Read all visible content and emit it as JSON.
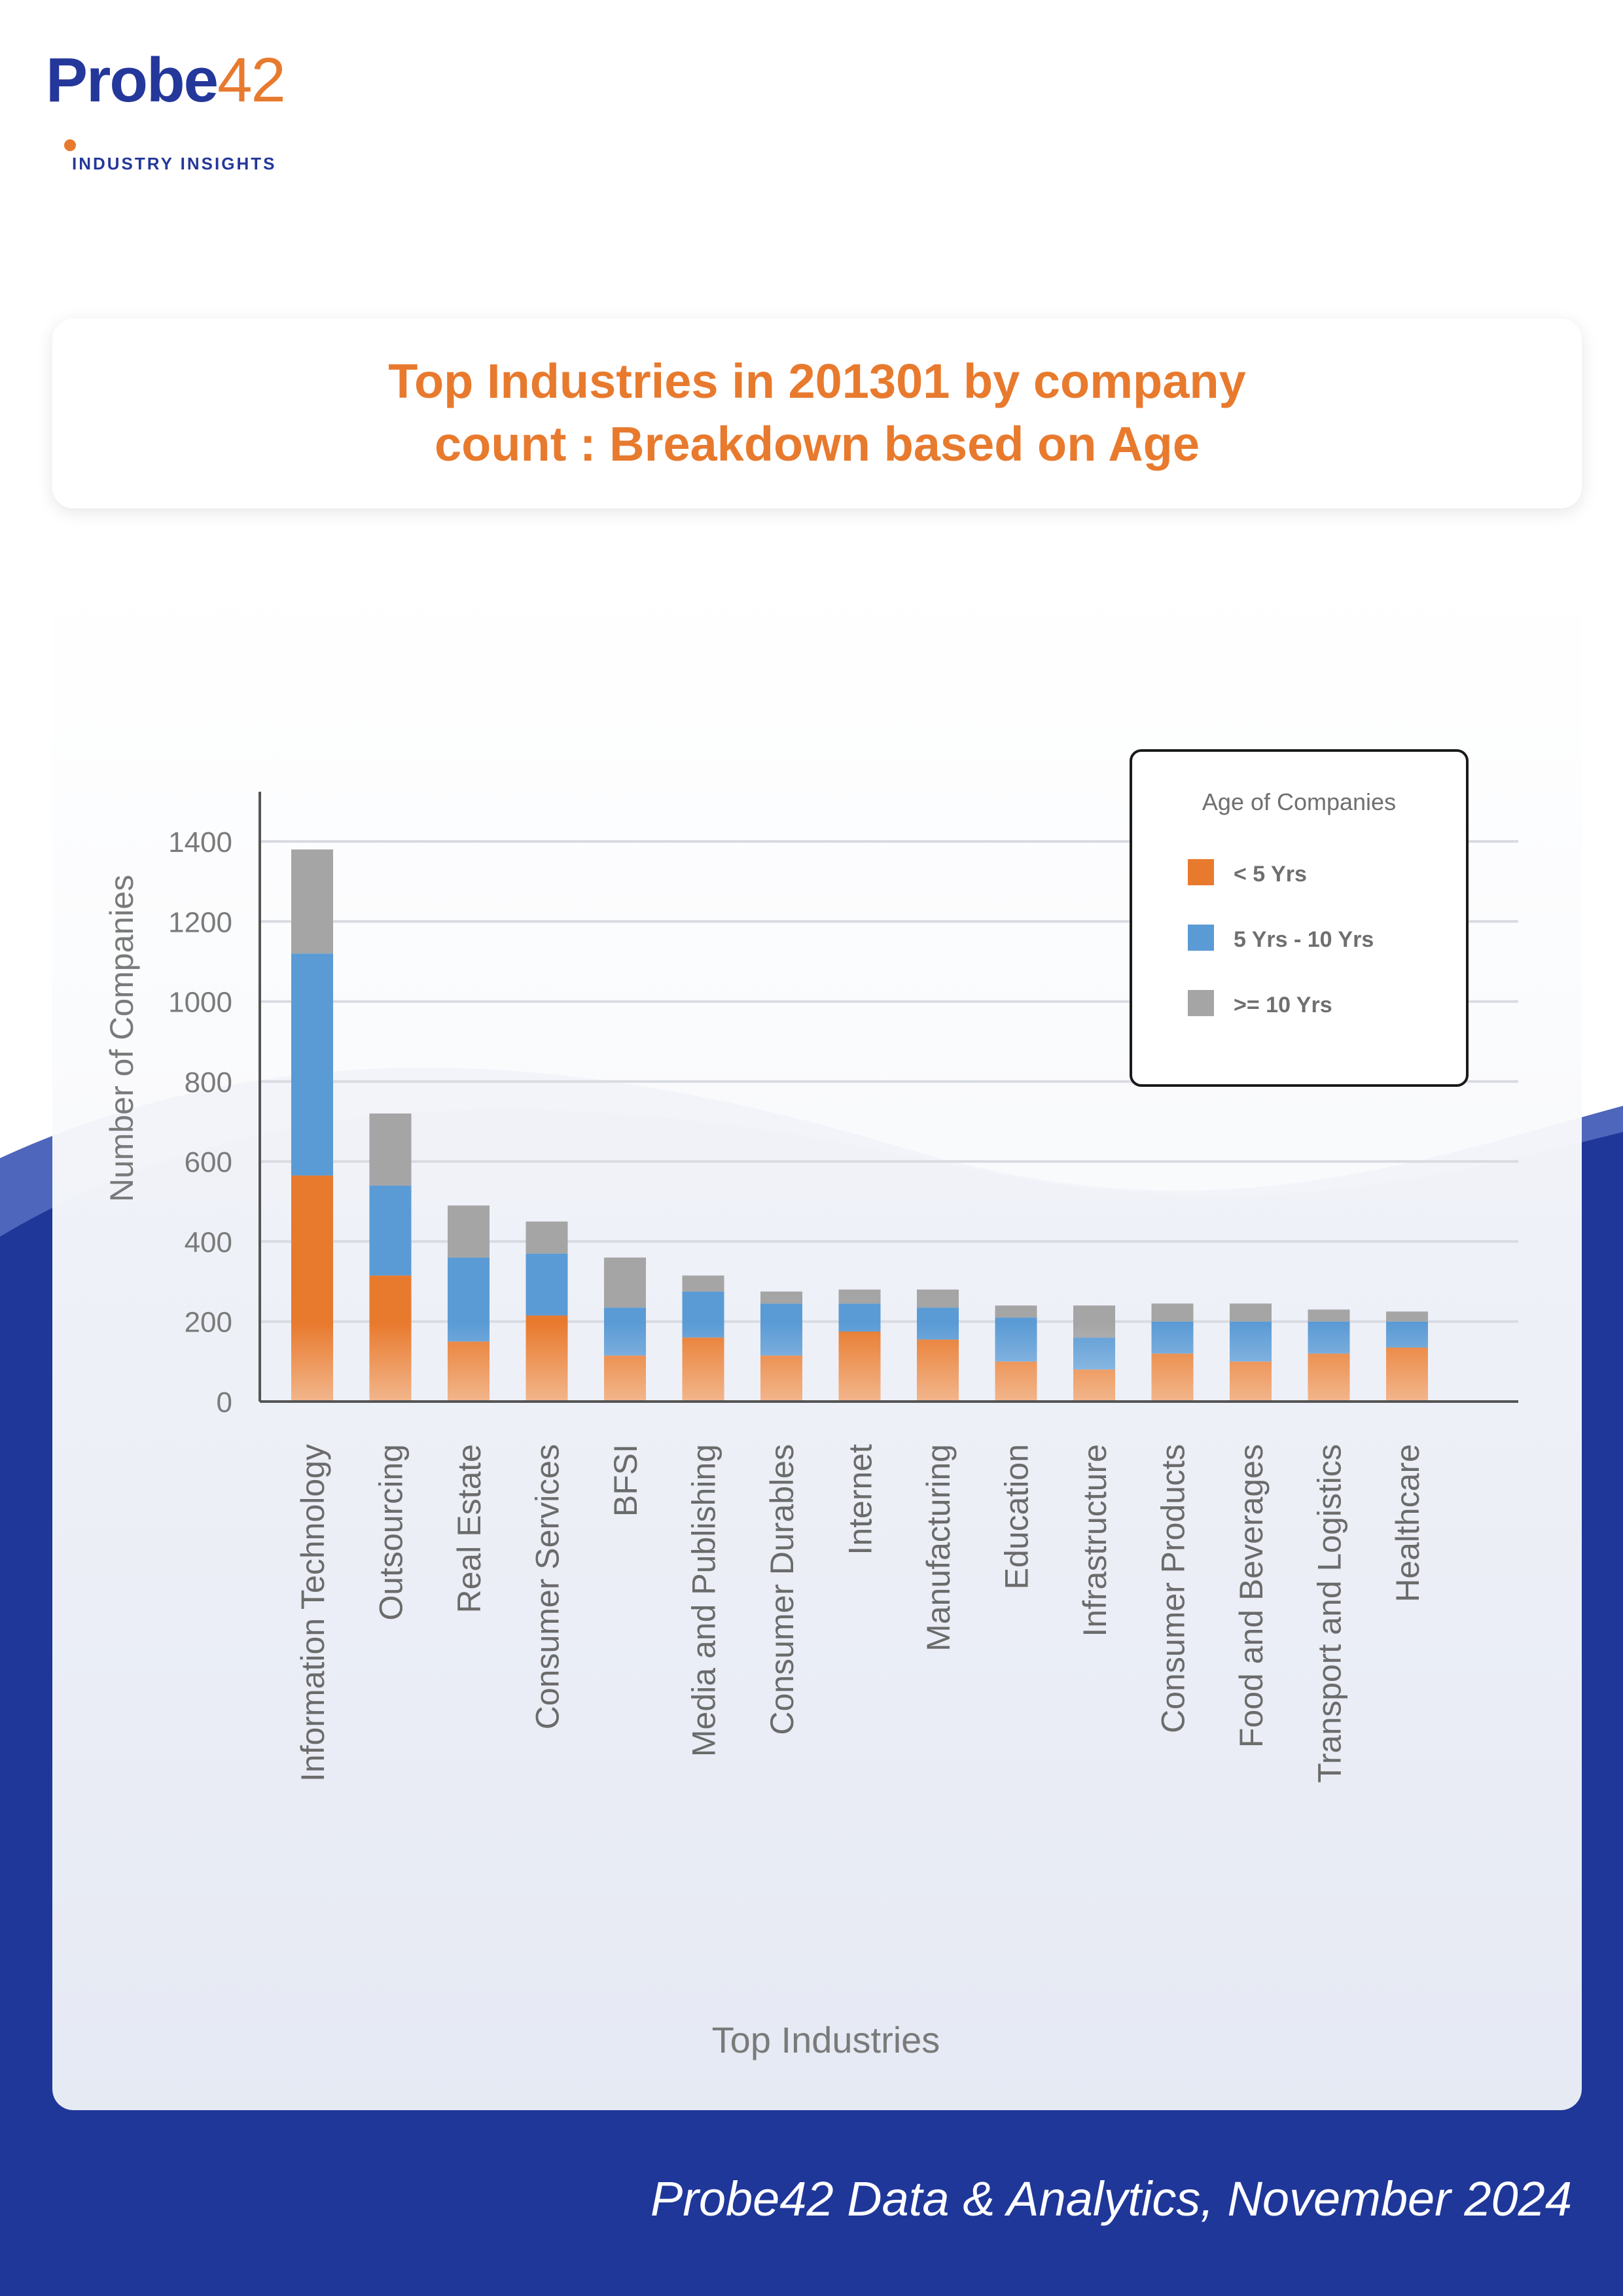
{
  "brand": {
    "logo_text_main": "Probe",
    "logo_text_num": "42",
    "logo_tagline": "INDUSTRY INSIGHTS"
  },
  "header": {
    "title_line1": "Top Industries in 201301 by company",
    "title_line2": "count : Breakdown based on Age"
  },
  "footer": {
    "credit": "Probe42 Data & Analytics, November 2024"
  },
  "colors": {
    "orange": "#e87a2e",
    "blue": "#5b9bd5",
    "gray": "#a5a5a5",
    "navy": "#1f3799"
  },
  "chart_data": {
    "type": "bar",
    "stacked": true,
    "title": "",
    "xlabel": "Top Industries",
    "ylabel": "Number of Companies",
    "ylim": [
      0,
      1500
    ],
    "yticks": [
      0,
      200,
      400,
      600,
      800,
      1000,
      1200,
      1400
    ],
    "grid": true,
    "legend_title": "Age of Companies",
    "legend_position": "top-right",
    "categories": [
      "Information Technology",
      "Outsourcing",
      "Real Estate",
      "Consumer Services",
      "BFSI",
      "Media and Publishing",
      "Consumer Durables",
      "Internet",
      "Manufacturing",
      "Education",
      "Infrastructure",
      "Consumer Products",
      "Food and Beverages",
      "Transport and Logistics",
      "Healthcare"
    ],
    "series": [
      {
        "name": "< 5 Yrs",
        "color": "#e87a2e",
        "values": [
          565,
          315,
          150,
          215,
          115,
          160,
          115,
          175,
          155,
          100,
          80,
          120,
          100,
          120,
          135
        ]
      },
      {
        "name": "5 Yrs - 10 Yrs",
        "color": "#5b9bd5",
        "values": [
          555,
          225,
          210,
          155,
          120,
          115,
          130,
          70,
          80,
          110,
          80,
          80,
          100,
          80,
          65
        ]
      },
      {
        "name": ">= 10 Yrs",
        "color": "#a5a5a5",
        "values": [
          260,
          180,
          130,
          80,
          125,
          40,
          30,
          35,
          45,
          30,
          80,
          45,
          45,
          30,
          25
        ]
      }
    ]
  }
}
